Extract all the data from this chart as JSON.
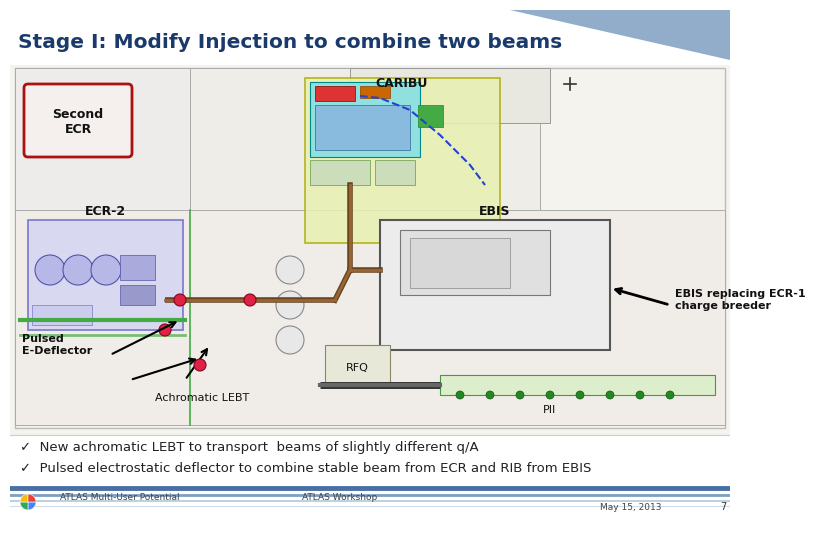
{
  "title": "Stage I: Modify Injection to combine two beams",
  "title_color": "#1a3a6b",
  "bg_color": "#ffffff",
  "header_bar_color": "#7f9fc0",
  "bullet1": "✓  New achromatic LEBT to transport  beams of slightly different q/A",
  "bullet2": "✓  Pulsed electrostatic deflector to combine stable beam from ECR and RIB from EBIS",
  "footer_left1": "ATLAS Multi-User Potential",
  "footer_left2": "ATLAS Workshop",
  "footer_right1": "May 15, 2013",
  "footer_right2": "7",
  "label_caribu": "CARIBU",
  "label_second_ecr": "Second\nECR",
  "label_ecr2": "ECR-2",
  "label_ebis": "EBIS",
  "label_ebis_replacing": "EBIS replacing ECR-1\ncharge breeder",
  "label_pulsed": "Pulsed\nE-Deflector",
  "label_rfq": "RFQ",
  "label_achromatic": "Achromatic LEBT",
  "label_pii": "PII",
  "map_bg": "#f5f3ee",
  "wall_color": "#aaaaaa",
  "caribu_fill": "#e8f0c8",
  "caribu_inner_fill": "#c8e8e8",
  "ecr2_fill": "#d8d8f0",
  "ebis_fill": "#e8e8e8",
  "second_ecr_edge": "#aa1111"
}
